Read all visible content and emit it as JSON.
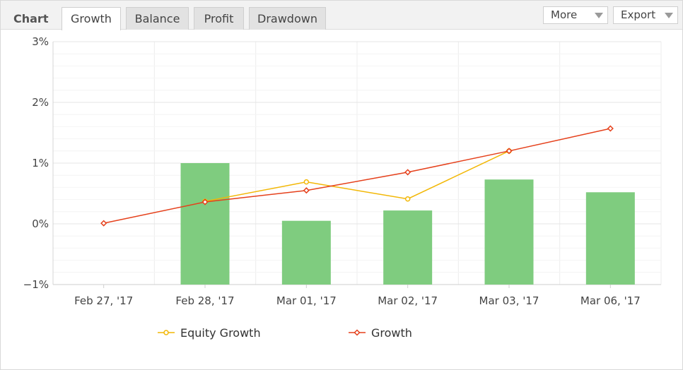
{
  "toolbar": {
    "chart_label": "Chart",
    "tabs": [
      {
        "label": "Growth",
        "active": true
      },
      {
        "label": "Balance",
        "active": false
      },
      {
        "label": "Profit",
        "active": false
      },
      {
        "label": "Drawdown",
        "active": false
      }
    ],
    "more_label": "More",
    "export_label": "Export"
  },
  "chart_data": {
    "type": "bar",
    "categories": [
      "Feb 27, '17",
      "Feb 28, '17",
      "Mar 01, '17",
      "Mar 02, '17",
      "Mar 03, '17",
      "Mar 06, '17"
    ],
    "ylim": [
      -1,
      3
    ],
    "yticks": [
      -1,
      0,
      1,
      2,
      3
    ],
    "ytick_labels": [
      "−1%",
      "0%",
      "1%",
      "2%",
      "3%"
    ],
    "grid": true,
    "bars": {
      "values": [
        null,
        1.0,
        0.05,
        0.22,
        0.73,
        0.52
      ],
      "color": "#7fcc7f"
    },
    "series": [
      {
        "name": "Equity Growth",
        "type": "line",
        "color": "#f2b705",
        "marker": "circle",
        "values": [
          null,
          0.37,
          0.69,
          0.41,
          1.2,
          null
        ]
      },
      {
        "name": "Growth",
        "type": "line",
        "color": "#e5401b",
        "marker": "diamond",
        "values": [
          0.01,
          0.36,
          0.55,
          0.85,
          1.2,
          1.57
        ]
      }
    ],
    "legend_position": "bottom-center"
  }
}
